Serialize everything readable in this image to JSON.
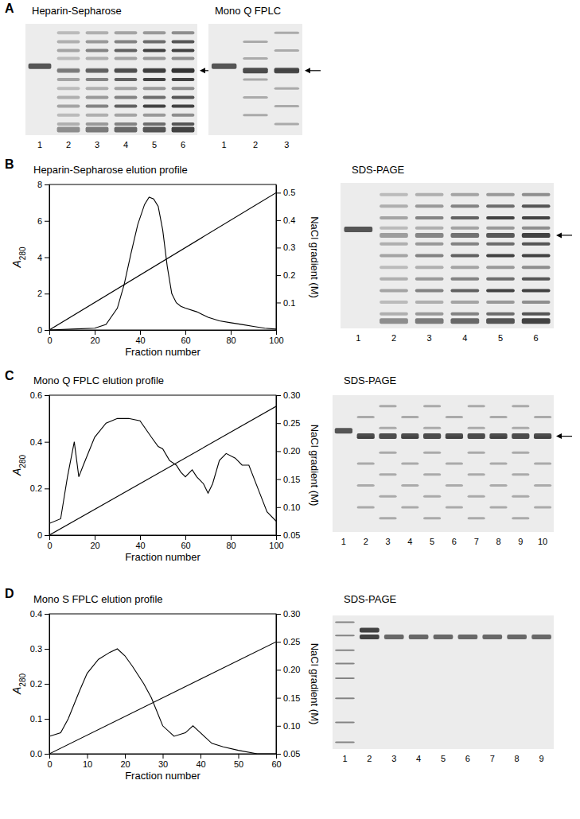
{
  "chart_data": [
    {
      "type": "line",
      "title": "Heparin-Sepharose elution profile",
      "x_label": "Fraction number",
      "y_label": "A280",
      "y2_label": "NaCl gradient (M)",
      "xlim": [
        0,
        100
      ],
      "xticks": [
        0,
        20,
        40,
        60,
        80,
        100
      ],
      "ylim": [
        0,
        8
      ],
      "yticks": [
        0,
        2,
        4,
        6,
        8
      ],
      "y2lim": [
        0,
        0.53
      ],
      "y2ticks": [
        0.1,
        0.2,
        0.3,
        0.4,
        0.5
      ],
      "series": [
        {
          "color": "#000000",
          "x": [
            0,
            10,
            20,
            25,
            30,
            33,
            36,
            39,
            42,
            44,
            46,
            48,
            50,
            52,
            54,
            56,
            58,
            60,
            65,
            70,
            75,
            80,
            85,
            90,
            95,
            100
          ],
          "values": [
            0,
            0.05,
            0.1,
            0.3,
            1.2,
            2.5,
            4.2,
            5.8,
            6.9,
            7.3,
            7.2,
            6.8,
            5.5,
            3.5,
            2.0,
            1.5,
            1.3,
            1.2,
            1.0,
            0.7,
            0.5,
            0.4,
            0.3,
            0.2,
            0.1,
            0.05
          ]
        },
        {
          "color": "#000000",
          "axis": "y2",
          "x": [
            0,
            100
          ],
          "values": [
            0,
            0.5
          ]
        }
      ]
    },
    {
      "type": "line",
      "title": "Mono Q FPLC elution profile",
      "x_label": "Fraction number",
      "y_label": "A280",
      "y2_label": "NaCl gradient (M)",
      "xlim": [
        0,
        100
      ],
      "xticks": [
        0,
        20,
        40,
        60,
        80,
        100
      ],
      "ylim": [
        0,
        0.6
      ],
      "yticks": [
        0,
        0.2,
        0.4,
        0.6
      ],
      "y2lim": [
        0.05,
        0.3
      ],
      "y2ticks": [
        0.05,
        {
          "value": 0.1,
          "label": "0.10"
        },
        0.15,
        {
          "value": 0.2,
          "label": "0.20"
        },
        0.25,
        {
          "value": 0.3,
          "label": "0.30"
        }
      ],
      "series": [
        {
          "color": "#000000",
          "x": [
            0,
            5,
            8,
            11,
            13,
            15,
            20,
            25,
            30,
            35,
            40,
            45,
            48,
            50,
            53,
            56,
            58,
            60,
            63,
            65,
            68,
            70,
            72,
            75,
            78,
            82,
            85,
            88,
            92,
            96,
            100
          ],
          "values": [
            0.05,
            0.07,
            0.25,
            0.4,
            0.25,
            0.3,
            0.42,
            0.48,
            0.5,
            0.5,
            0.49,
            0.42,
            0.38,
            0.37,
            0.32,
            0.3,
            0.27,
            0.25,
            0.28,
            0.25,
            0.22,
            0.18,
            0.22,
            0.32,
            0.35,
            0.33,
            0.3,
            0.3,
            0.2,
            0.1,
            0.06
          ]
        },
        {
          "color": "#000000",
          "axis": "y2",
          "x": [
            0,
            100
          ],
          "values": [
            0.05,
            0.28
          ]
        }
      ]
    },
    {
      "type": "line",
      "title": "Mono S FPLC elution profile",
      "x_label": "Fraction number",
      "y_label": "A280",
      "y2_label": "NaCl gradient (M)",
      "xlim": [
        0,
        60
      ],
      "xticks": [
        0,
        10,
        20,
        30,
        40,
        50,
        60
      ],
      "ylim": [
        0,
        0.4
      ],
      "yticks": [
        {
          "value": 0,
          "label": "0.0"
        },
        0.1,
        0.2,
        0.3,
        0.4
      ],
      "y2lim": [
        0.05,
        0.3
      ],
      "y2ticks": [
        0.05,
        {
          "value": 0.1,
          "label": "0.10"
        },
        0.15,
        {
          "value": 0.2,
          "label": "0.20"
        },
        0.25,
        {
          "value": 0.3,
          "label": "0.30"
        }
      ],
      "series": [
        {
          "color": "#000000",
          "x": [
            0,
            3,
            5,
            8,
            10,
            13,
            16,
            18,
            20,
            22,
            25,
            27,
            30,
            33,
            36,
            38,
            40,
            43,
            46,
            50,
            55,
            60
          ],
          "values": [
            0.05,
            0.06,
            0.1,
            0.18,
            0.23,
            0.27,
            0.29,
            0.3,
            0.28,
            0.25,
            0.2,
            0.16,
            0.08,
            0.05,
            0.06,
            0.08,
            0.06,
            0.03,
            0.02,
            0.01,
            0,
            0
          ]
        },
        {
          "color": "#000000",
          "axis": "y2",
          "x": [
            0,
            60
          ],
          "values": [
            0.05,
            0.25
          ]
        }
      ]
    }
  ],
  "panels": [
    {
      "label": "A",
      "gels": [
        {
          "title": "Heparin-Sepharose",
          "lanes": [
            "1",
            "2",
            "3",
            "4",
            "5",
            "6"
          ]
        },
        {
          "title": "Mono Q FPLC",
          "lanes": [
            "1",
            "2",
            "3"
          ]
        }
      ]
    },
    {
      "label": "B",
      "gels": [
        {
          "title": "SDS-PAGE",
          "lanes": [
            "1",
            "2",
            "3",
            "4",
            "5",
            "6"
          ]
        }
      ]
    },
    {
      "label": "C",
      "gels": [
        {
          "title": "SDS-PAGE",
          "lanes": [
            "1",
            "2",
            "3",
            "4",
            "5",
            "6",
            "7",
            "8",
            "9",
            "10"
          ]
        }
      ]
    },
    {
      "label": "D",
      "gels": [
        {
          "title": "SDS-PAGE",
          "lanes": [
            "1",
            "2",
            "3",
            "4",
            "5",
            "6",
            "7",
            "8",
            "9"
          ]
        }
      ]
    }
  ]
}
